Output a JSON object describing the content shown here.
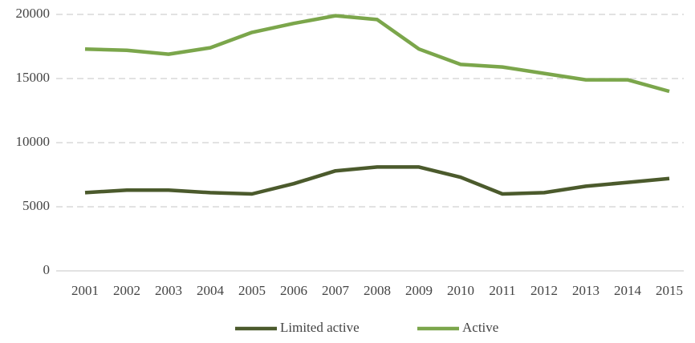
{
  "chart_data": {
    "type": "line",
    "categories": [
      "2001",
      "2002",
      "2003",
      "2004",
      "2005",
      "2006",
      "2007",
      "2008",
      "2009",
      "2010",
      "2011",
      "2012",
      "2013",
      "2014",
      "2015"
    ],
    "series": [
      {
        "name": "Limited active",
        "color": "#4b5a2c",
        "values": [
          6100,
          6300,
          6300,
          6100,
          6000,
          6800,
          7800,
          8100,
          8100,
          7300,
          6000,
          6100,
          6600,
          6900,
          7200
        ]
      },
      {
        "name": "Active",
        "color": "#7ba64b",
        "values": [
          17300,
          17200,
          16900,
          17400,
          18600,
          19300,
          19900,
          19600,
          17300,
          16100,
          15900,
          15400,
          14900,
          14900,
          14000
        ]
      }
    ],
    "ylim": [
      0,
      20000
    ],
    "yticks": [
      0,
      5000,
      10000,
      15000,
      20000
    ],
    "grid": true,
    "legend": "bottom"
  }
}
